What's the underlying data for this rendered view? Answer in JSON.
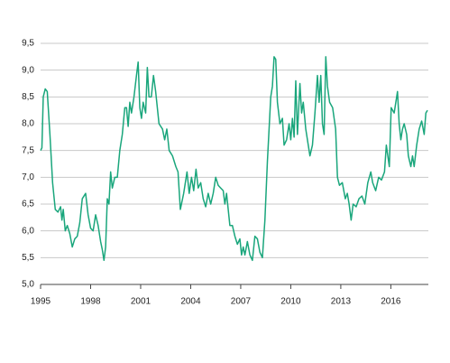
{
  "chart_data": {
    "type": "line",
    "color": "#1aa67c",
    "grid": true,
    "xlim": [
      1995,
      2018.25
    ],
    "xticks": [
      1995,
      1998,
      2001,
      2004,
      2007,
      2010,
      2013,
      2016
    ],
    "ylim": [
      5,
      9.5
    ],
    "yticks": [
      {
        "value": 5,
        "label": "5,0"
      },
      {
        "value": 5.5,
        "label": "5,5"
      },
      {
        "value": 6,
        "label": "6,0"
      },
      {
        "value": 6.5,
        "label": "6,5"
      },
      {
        "value": 7,
        "label": "7,0"
      },
      {
        "value": 7.5,
        "label": "7,5"
      },
      {
        "value": 8,
        "label": "8,0"
      },
      {
        "value": 8.5,
        "label": "8,5"
      },
      {
        "value": 9,
        "label": "9,0"
      },
      {
        "value": 9.5,
        "label": "9,5"
      }
    ],
    "x": [
      1995.0,
      1995.08,
      1995.16,
      1995.28,
      1995.4,
      1995.56,
      1995.72,
      1995.88,
      1996.04,
      1996.2,
      1996.28,
      1996.36,
      1996.48,
      1996.6,
      1996.75,
      1996.9,
      1997.05,
      1997.2,
      1997.35,
      1997.5,
      1997.7,
      1997.85,
      1998.0,
      1998.15,
      1998.3,
      1998.45,
      1998.6,
      1998.7,
      1998.8,
      1998.9,
      1999.0,
      1999.1,
      1999.2,
      1999.3,
      1999.45,
      1999.6,
      1999.75,
      1999.9,
      2000.05,
      2000.15,
      2000.25,
      2000.35,
      2000.45,
      2000.6,
      2000.75,
      2000.85,
      2000.95,
      2001.05,
      2001.15,
      2001.3,
      2001.4,
      2001.5,
      2001.64,
      2001.77,
      2001.9,
      2002.1,
      2002.31,
      2002.44,
      2002.57,
      2002.71,
      2002.91,
      2003.11,
      2003.24,
      2003.38,
      2003.58,
      2003.78,
      2003.91,
      2004.05,
      2004.18,
      2004.32,
      2004.45,
      2004.6,
      2004.75,
      2004.9,
      2005.05,
      2005.2,
      2005.35,
      2005.5,
      2005.65,
      2005.8,
      2005.95,
      2006.05,
      2006.15,
      2006.25,
      2006.35,
      2006.5,
      2006.65,
      2006.8,
      2006.95,
      2007.05,
      2007.15,
      2007.25,
      2007.4,
      2007.55,
      2007.7,
      2007.85,
      2008.0,
      2008.15,
      2008.3,
      2008.45,
      2008.6,
      2008.8,
      2008.9,
      2009.0,
      2009.1,
      2009.2,
      2009.35,
      2009.5,
      2009.6,
      2009.75,
      2009.9,
      2010.0,
      2010.1,
      2010.2,
      2010.3,
      2010.4,
      2010.55,
      2010.65,
      2010.75,
      2010.9,
      2011.05,
      2011.15,
      2011.3,
      2011.45,
      2011.6,
      2011.7,
      2011.8,
      2011.9,
      2012.0,
      2012.1,
      2012.2,
      2012.33,
      2012.51,
      2012.69,
      2012.8,
      2012.92,
      2013.09,
      2013.27,
      2013.39,
      2013.5,
      2013.62,
      2013.74,
      2013.92,
      2014.09,
      2014.27,
      2014.44,
      2014.62,
      2014.8,
      2014.91,
      2015.09,
      2015.27,
      2015.44,
      2015.62,
      2015.73,
      2015.91,
      2016.02,
      2016.2,
      2016.3,
      2016.4,
      2016.5,
      2016.6,
      2016.7,
      2016.8,
      2016.95,
      2017.05,
      2017.2,
      2017.3,
      2017.4,
      2017.55,
      2017.7,
      2017.85,
      2018.0,
      2018.1,
      2018.2
    ],
    "values": [
      7.5,
      7.55,
      8.5,
      8.65,
      8.6,
      7.8,
      6.9,
      6.4,
      6.35,
      6.45,
      6.2,
      6.4,
      6.0,
      6.1,
      5.95,
      5.7,
      5.85,
      5.9,
      6.15,
      6.6,
      6.7,
      6.3,
      6.05,
      6.0,
      6.3,
      6.1,
      5.8,
      5.65,
      5.45,
      5.7,
      6.6,
      6.5,
      7.1,
      6.8,
      7.0,
      7.0,
      7.5,
      7.8,
      8.3,
      8.3,
      7.95,
      8.4,
      8.2,
      8.5,
      8.9,
      9.15,
      8.3,
      8.1,
      8.4,
      8.2,
      9.05,
      8.5,
      8.5,
      8.9,
      8.6,
      8.0,
      7.9,
      7.7,
      7.9,
      7.5,
      7.4,
      7.2,
      7.1,
      6.4,
      6.7,
      7.1,
      6.7,
      7.0,
      6.75,
      7.15,
      6.8,
      6.9,
      6.6,
      6.45,
      6.7,
      6.5,
      6.7,
      7.0,
      6.85,
      6.8,
      6.75,
      6.5,
      6.7,
      6.4,
      6.1,
      6.1,
      5.9,
      5.75,
      5.85,
      5.55,
      5.7,
      5.55,
      5.8,
      5.55,
      5.45,
      5.9,
      5.85,
      5.6,
      5.5,
      6.2,
      7.3,
      8.5,
      8.7,
      9.25,
      9.2,
      8.4,
      8.0,
      8.1,
      7.6,
      7.7,
      8.0,
      7.7,
      8.1,
      7.75,
      8.8,
      7.8,
      8.75,
      8.2,
      8.4,
      7.9,
      7.6,
      7.4,
      7.6,
      8.2,
      8.9,
      8.4,
      8.9,
      8.0,
      7.8,
      9.25,
      8.7,
      8.4,
      8.3,
      7.9,
      7.0,
      6.85,
      6.9,
      6.6,
      6.7,
      6.5,
      6.2,
      6.5,
      6.45,
      6.6,
      6.65,
      6.5,
      6.9,
      7.1,
      6.9,
      6.75,
      7.0,
      6.95,
      7.1,
      7.6,
      7.2,
      8.3,
      8.2,
      8.4,
      8.6,
      8.0,
      7.7,
      7.9,
      8.0,
      7.8,
      7.4,
      7.2,
      7.4,
      7.2,
      7.6,
      7.9,
      8.05,
      7.8,
      8.2,
      8.25
    ]
  }
}
